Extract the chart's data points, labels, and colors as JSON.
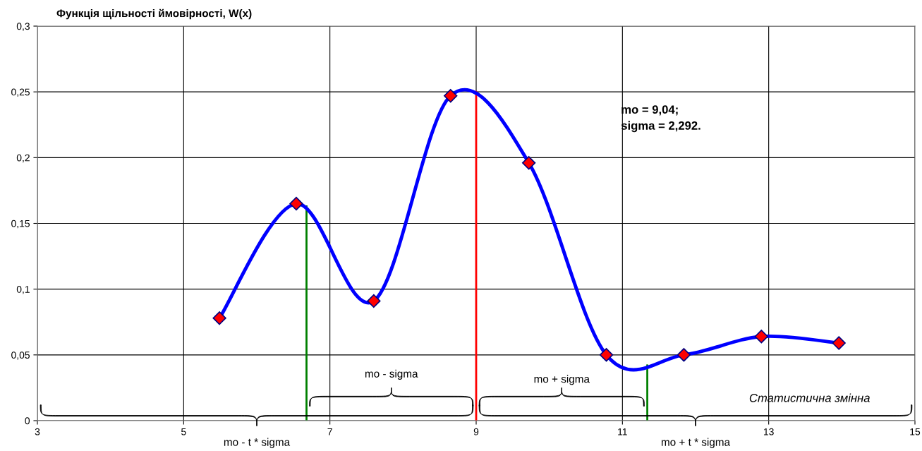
{
  "chart_data": {
    "type": "line",
    "ylabel": "Функція щільності ймовірності, W(x)",
    "xlabel": "Статистична змінна",
    "annotations": [
      "mo = 9,04;\nsigma = 2,292.",
      "mo - t * sigma",
      "mo + t * sigma",
      "mo - sigma",
      "mo + sigma"
    ],
    "series": [
      {
        "type": "line",
        "color": "#0000ff",
        "marker": "diamond",
        "x": [
          5.49,
          6.54,
          7.6,
          8.65,
          9.72,
          10.78,
          11.84,
          12.9,
          13.96
        ],
        "values": [
          0.078,
          0.165,
          0.091,
          0.247,
          0.196,
          0.05,
          0.05,
          0.064,
          0.059
        ]
      },
      {
        "type": "line",
        "color": "#008000",
        "marker": "none",
        "x": [
          6.68,
          6.68
        ],
        "values": [
          0,
          0.163
        ]
      },
      {
        "type": "line",
        "color": "#ff0000",
        "marker": "none",
        "x": [
          9,
          9
        ],
        "values": [
          0,
          0.25
        ]
      },
      {
        "type": "line",
        "color": "#008000",
        "marker": "none",
        "x": [
          11.34,
          11.34
        ],
        "values": [
          0,
          0.042
        ]
      }
    ],
    "xlim": [
      3,
      15
    ],
    "xticks": [
      3,
      5,
      7,
      9,
      11,
      13,
      15
    ],
    "ylim": [
      0,
      0.3
    ],
    "yticks": [
      0,
      {
        "value": 0.05,
        "label": "0,05"
      },
      {
        "value": 0.1,
        "label": "0,1"
      },
      {
        "value": 0.15,
        "label": "0,15"
      },
      {
        "value": 0.2,
        "label": "0,2"
      },
      {
        "value": 0.25,
        "label": "0,25"
      },
      {
        "value": 0.3,
        "label": "0,3"
      }
    ],
    "grid": true,
    "legend": false
  }
}
